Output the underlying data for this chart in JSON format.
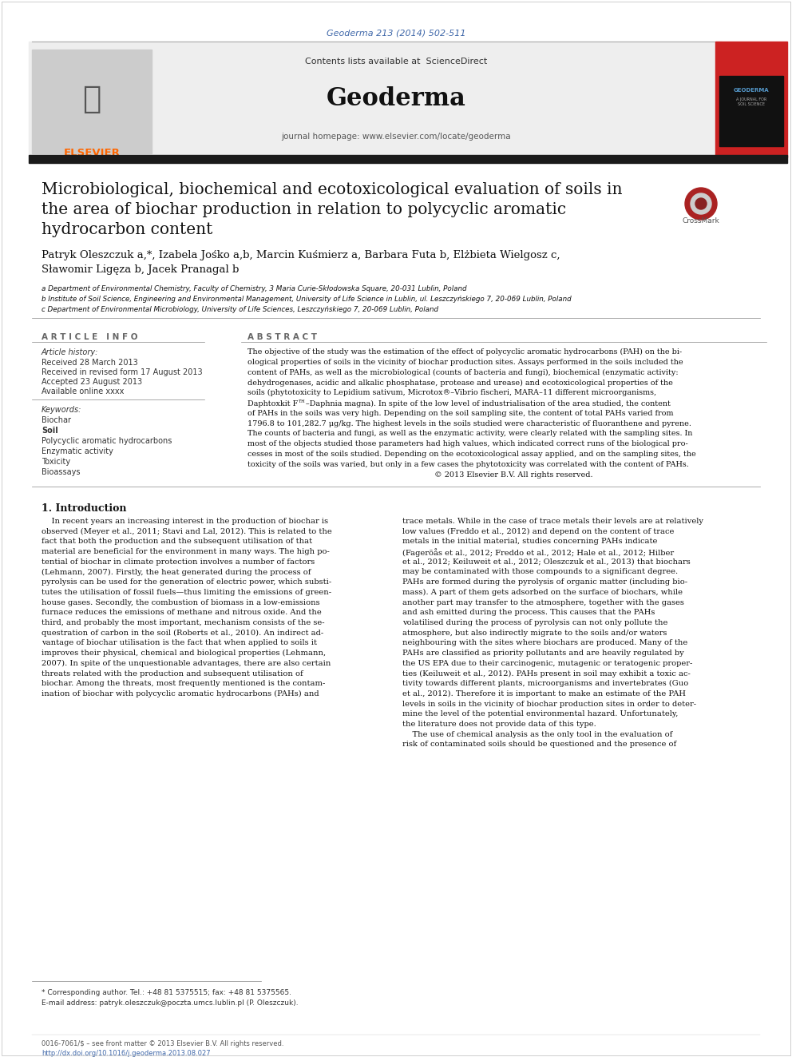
{
  "journal_ref": "Geoderma 213 (2014) 502-511",
  "journal_ref_color": "#4169aa",
  "contents_text": "Contents lists available at ",
  "sciencedirect_text": "ScienceDirect",
  "sciencedirect_color": "#4169aa",
  "journal_name": "Geoderma",
  "journal_homepage": "journal homepage: www.elsevier.com/locate/geoderma",
  "title_line1": "Microbiological, biochemical and ecotoxicological evaluation of soils in",
  "title_line2": "the area of biochar production in relation to polycyclic aromatic",
  "title_line3": "hydrocarbon content",
  "author_line1": "Patryk Oleszczuk a,*, Izabela Jośko a,b, Marcin Kuśmierz a, Barbara Futa b, Elżbieta Wielgosz c,",
  "author_line2": "Sławomir Ligęza b, Jacek Pranagal b",
  "affil_a": "a Department of Environmental Chemistry, Faculty of Chemistry, 3 Maria Curie-Skłodowska Square, 20-031 Lublin, Poland",
  "affil_b": "b Institute of Soil Science, Engineering and Environmental Management, University of Life Science in Lublin, ul. Leszczyńskiego 7, 20-069 Lublin, Poland",
  "affil_c": "c Department of Environmental Microbiology, University of Life Sciences, Leszczyńskiego 7, 20-069 Lublin, Poland",
  "article_info_header": "A R T I C L E   I N F O",
  "article_history_label": "Article history:",
  "received": "Received 28 March 2013",
  "received_revised": "Received in revised form 17 August 2013",
  "accepted": "Accepted 23 August 2013",
  "available": "Available online xxxx",
  "keywords_label": "Keywords:",
  "keywords": [
    "Biochar",
    "Soil",
    "Polycyclic aromatic hydrocarbons",
    "Enzymatic activity",
    "Toxicity",
    "Bioassays"
  ],
  "abstract_header": "A B S T R A C T",
  "intro_header": "1. Introduction",
  "footnote_star": "* Corresponding author. Tel.: +48 81 5375515; fax: +48 81 5375565.",
  "footnote_email": "E-mail address: patryk.oleszczuk@poczta.umcs.lublin.pl (P. Oleszczuk).",
  "footer_issn": "0016-7061/$ – see front matter © 2013 Elsevier B.V. All rights reserved.",
  "footer_doi": "http://dx.doi.org/10.1016/j.geoderma.2013.08.027",
  "link_color": "#4169aa",
  "bg_color": "#ffffff",
  "header_bg": "#eeeeee",
  "black_bar_color": "#1a1a1a",
  "red_bar_color": "#cc2222"
}
